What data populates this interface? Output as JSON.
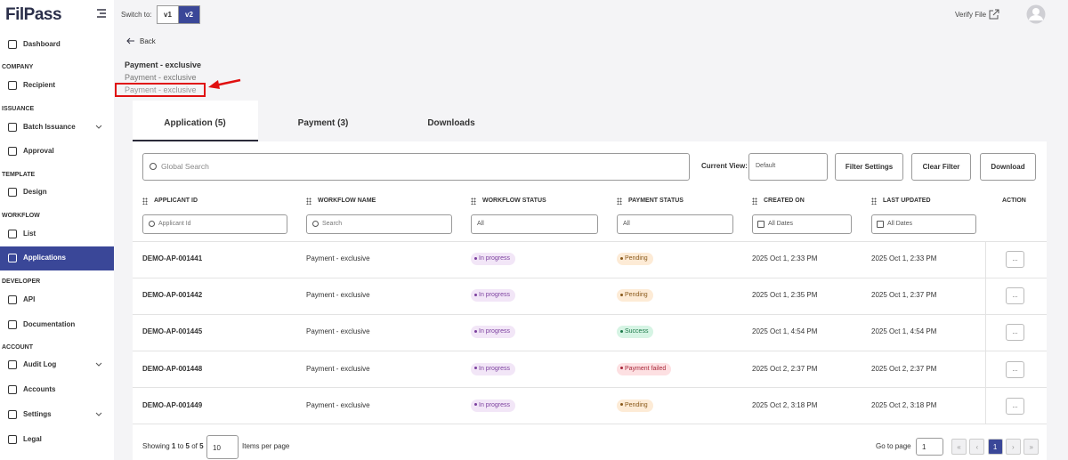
{
  "sidebar": {
    "logo": "FilPass",
    "items": [
      {
        "label": "Dashboard"
      },
      {
        "section": "COMPANY"
      },
      {
        "label": "Recipient"
      },
      {
        "section": "ISSUANCE"
      },
      {
        "label": "Batch Issuance",
        "expand": true
      },
      {
        "label": "Approval"
      },
      {
        "section": "TEMPLATE"
      },
      {
        "label": "Design"
      },
      {
        "section": "WORKFLOW"
      },
      {
        "label": "List"
      },
      {
        "label": "Applications",
        "active": true
      },
      {
        "section": "DEVELOPER"
      },
      {
        "label": "API"
      },
      {
        "label": "Documentation"
      },
      {
        "section": "ACCOUNT"
      },
      {
        "label": "Audit Log",
        "expand": true
      },
      {
        "label": "Accounts"
      },
      {
        "label": "Settings",
        "expand": true
      },
      {
        "label": "Legal"
      }
    ]
  },
  "topbar": {
    "switch_label": "Switch to:",
    "versions": [
      "v1",
      "v2"
    ],
    "active_version": 1,
    "verify": "Verify File"
  },
  "back": "Back",
  "titles": [
    "Payment - exclusive",
    "Payment - exclusive",
    "Payment - exclusive"
  ],
  "tabs": [
    "Application (5)",
    "Payment (3)",
    "Downloads"
  ],
  "toolbar": {
    "search": "Global Search",
    "view_label": "Current View:",
    "view": "Default",
    "buttons": [
      "Filter Settings",
      "Clear Filter",
      "Download"
    ]
  },
  "table": {
    "columns": [
      "APPLICANT ID",
      "WORKFLOW NAME",
      "WORKFLOW STATUS",
      "PAYMENT STATUS",
      "CREATED ON",
      "LAST UPDATED",
      "ACTION"
    ],
    "filters": [
      "Applicant Id",
      "Search",
      "All",
      "All",
      "All Dates",
      "All Dates"
    ],
    "rows": [
      [
        "DEMO-AP-001441",
        "Payment - exclusive",
        {
          "text": "In progress",
          "color": "#7b3f9e",
          "bg": "#f2e6f7"
        },
        {
          "text": "Pending",
          "color": "#8a5a1c",
          "bg": "#fdebd6"
        },
        "2025 Oct 1, 2:33 PM",
        "2025 Oct 1, 2:33 PM",
        "..."
      ],
      [
        "DEMO-AP-001442",
        "Payment - exclusive",
        {
          "text": "In progress",
          "color": "#7b3f9e",
          "bg": "#f2e6f7"
        },
        {
          "text": "Pending",
          "color": "#8a5a1c",
          "bg": "#fdebd6"
        },
        "2025 Oct 1, 2:35 PM",
        "2025 Oct 1, 2:37 PM",
        "..."
      ],
      [
        "DEMO-AP-001445",
        "Payment - exclusive",
        {
          "text": "In progress",
          "color": "#7b3f9e",
          "bg": "#f2e6f7"
        },
        {
          "text": "Success",
          "color": "#1d7a4a",
          "bg": "#d6f4e4"
        },
        "2025 Oct 1, 4:54 PM",
        "2025 Oct 1, 4:54 PM",
        "..."
      ],
      [
        "DEMO-AP-001448",
        "Payment - exclusive",
        {
          "text": "In progress",
          "color": "#7b3f9e",
          "bg": "#f2e6f7"
        },
        {
          "text": "Payment failed",
          "color": "#a8283b",
          "bg": "#fde0e2"
        },
        "2025 Oct 2, 2:37 PM",
        "2025 Oct 2, 2:37 PM",
        "..."
      ],
      [
        "DEMO-AP-001449",
        "Payment - exclusive",
        {
          "text": "In progress",
          "color": "#7b3f9e",
          "bg": "#f2e6f7"
        },
        {
          "text": "Pending",
          "color": "#8a5a1c",
          "bg": "#fdebd6"
        },
        "2025 Oct 2, 3:18 PM",
        "2025 Oct 2, 3:18 PM",
        "..."
      ]
    ]
  },
  "footer": {
    "showing": [
      "Showing",
      "1",
      "to",
      "5",
      "of",
      "5"
    ],
    "page_size": "10",
    "per_page": "Items per page",
    "goto": "Go to page",
    "page_input": "1",
    "pager": [
      "«",
      "‹",
      "1",
      "›",
      "»"
    ],
    "current_page": 2
  }
}
